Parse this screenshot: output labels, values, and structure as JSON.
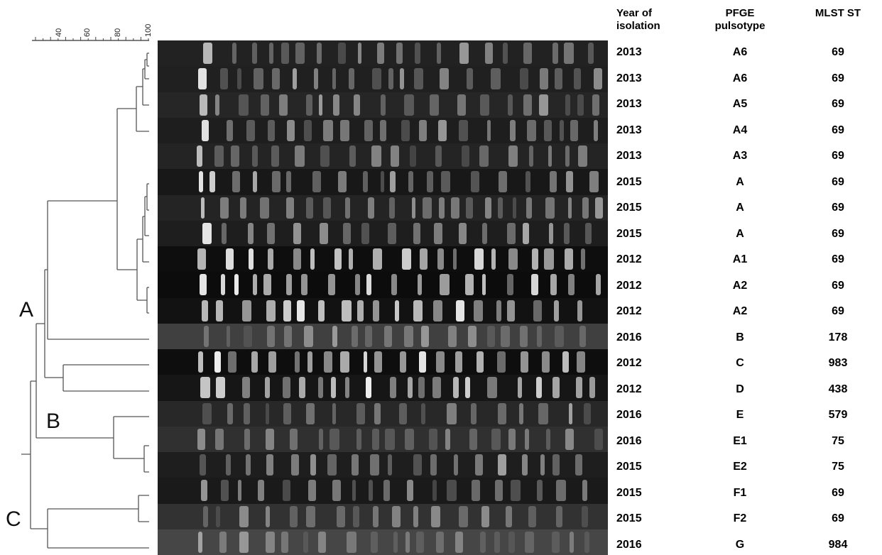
{
  "scale": {
    "ticks": [
      "40",
      "60",
      "80",
      "100"
    ]
  },
  "clusters": [
    "A",
    "B",
    "C"
  ],
  "headers": {
    "year": "Year of isolation",
    "pfge": "PFGE pulsotype",
    "mlst": "MLST ST"
  },
  "isolates": [
    {
      "year": "2013",
      "pfge": "A6",
      "mlst": "69"
    },
    {
      "year": "2013",
      "pfge": "A6",
      "mlst": "69"
    },
    {
      "year": "2013",
      "pfge": "A5",
      "mlst": "69"
    },
    {
      "year": "2013",
      "pfge": "A4",
      "mlst": "69"
    },
    {
      "year": "2013",
      "pfge": "A3",
      "mlst": "69"
    },
    {
      "year": "2015",
      "pfge": "A",
      "mlst": "69"
    },
    {
      "year": "2015",
      "pfge": "A",
      "mlst": "69"
    },
    {
      "year": "2015",
      "pfge": "A",
      "mlst": "69"
    },
    {
      "year": "2012",
      "pfge": "A1",
      "mlst": "69"
    },
    {
      "year": "2012",
      "pfge": "A2",
      "mlst": "69"
    },
    {
      "year": "2012",
      "pfge": "A2",
      "mlst": "69"
    },
    {
      "year": "2016",
      "pfge": "B",
      "mlst": "178"
    },
    {
      "year": "2012",
      "pfge": "C",
      "mlst": "983"
    },
    {
      "year": "2012",
      "pfge": "D",
      "mlst": "438"
    },
    {
      "year": "2016",
      "pfge": "E",
      "mlst": "579"
    },
    {
      "year": "2016",
      "pfge": "E1",
      "mlst": "75"
    },
    {
      "year": "2015",
      "pfge": "E2",
      "mlst": "75"
    },
    {
      "year": "2015",
      "pfge": "F1",
      "mlst": "69"
    },
    {
      "year": "2015",
      "pfge": "F2",
      "mlst": "69"
    },
    {
      "year": "2016",
      "pfge": "G",
      "mlst": "984"
    }
  ]
}
